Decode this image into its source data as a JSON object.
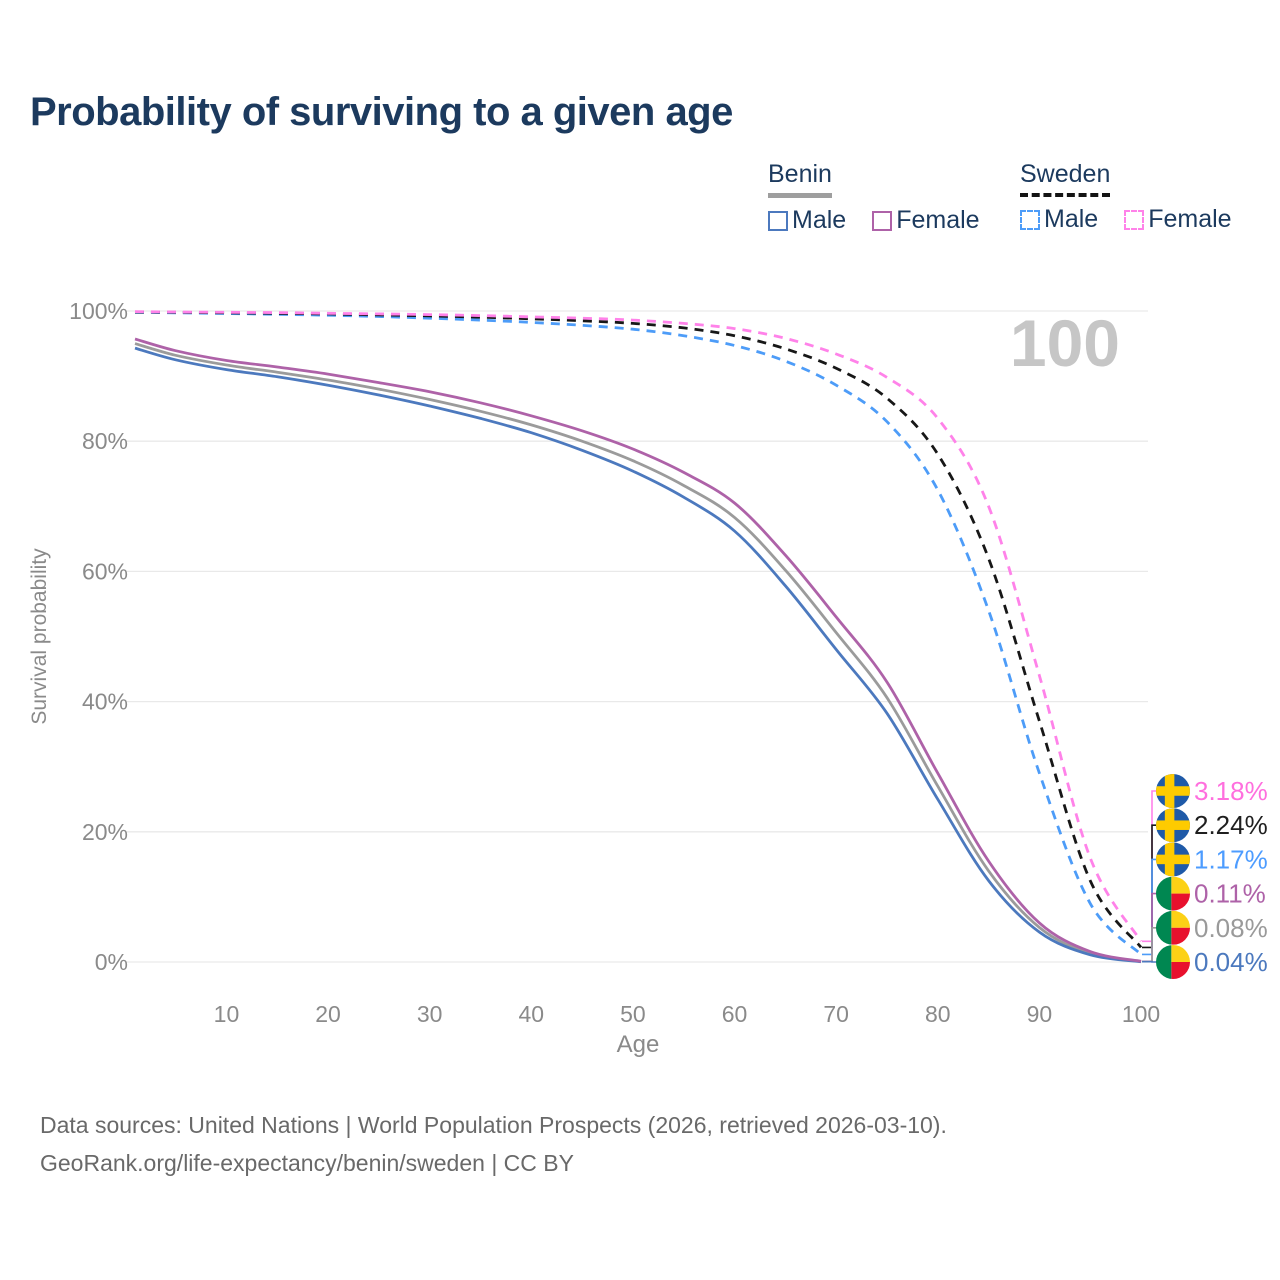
{
  "title": "Probability of surviving to a given age",
  "legend": {
    "groups": [
      {
        "label": "Benin",
        "underline": "solid",
        "underline_color": "#9e9e9e",
        "items": [
          {
            "label": "Male",
            "color": "#4c79be",
            "dash": "solid"
          },
          {
            "label": "Female",
            "color": "#ae62a8",
            "dash": "solid"
          }
        ]
      },
      {
        "label": "Sweden",
        "underline": "dashed",
        "underline_color": "#141414",
        "items": [
          {
            "label": "Male",
            "color": "#4d9cf8",
            "dash": "dashed"
          },
          {
            "label": "Female",
            "color": "#ff82e9",
            "dash": "dashed"
          }
        ]
      }
    ]
  },
  "chart_data": {
    "type": "line",
    "title": "Probability of surviving to a given age",
    "xlabel": "Age",
    "ylabel": "Survival probability",
    "x_range": [
      1,
      100
    ],
    "ylim": [
      0,
      100
    ],
    "grid": "horizontal",
    "x_ticks": [
      10,
      20,
      30,
      40,
      50,
      60,
      70,
      80,
      90,
      100
    ],
    "y_ticks": [
      0,
      20,
      40,
      60,
      80,
      100
    ],
    "y_tick_suffix": "%",
    "hover_age_indicator": "100",
    "hover_indicator_color": "#c6c6c6",
    "ages": [
      1,
      5,
      10,
      15,
      20,
      25,
      30,
      35,
      40,
      45,
      50,
      55,
      60,
      65,
      70,
      75,
      80,
      85,
      90,
      95,
      100
    ],
    "series": [
      {
        "name": "Benin Both sexes",
        "country": "Benin",
        "sex": "Both",
        "color": "#9b9b9b",
        "dash": "solid",
        "values": [
          95.0,
          93.2,
          91.7,
          90.6,
          89.4,
          88.0,
          86.4,
          84.6,
          82.5,
          80.0,
          77.0,
          73.2,
          68.3,
          60.2,
          50.6,
          40.6,
          27.0,
          14.0,
          5.3,
          1.3,
          0.08
        ]
      },
      {
        "name": "Benin Male",
        "country": "Benin",
        "sex": "Male",
        "color": "#4c79be",
        "dash": "solid",
        "values": [
          94.3,
          92.5,
          91.0,
          89.9,
          88.6,
          87.1,
          85.4,
          83.5,
          81.3,
          78.6,
          75.4,
          71.4,
          66.2,
          57.8,
          48.0,
          38.2,
          25.0,
          12.5,
          4.6,
          1.1,
          0.04
        ]
      },
      {
        "name": "Benin Female",
        "country": "Benin",
        "sex": "Female",
        "color": "#ae62a8",
        "dash": "solid",
        "values": [
          95.7,
          93.9,
          92.4,
          91.4,
          90.3,
          89.0,
          87.6,
          85.9,
          83.9,
          81.6,
          78.8,
          75.2,
          70.5,
          62.5,
          53.0,
          43.0,
          29.0,
          15.5,
          6.0,
          1.6,
          0.11
        ]
      },
      {
        "name": "Sweden Male",
        "country": "Sweden",
        "sex": "Male",
        "color": "#4d9cf8",
        "dash": "dashed",
        "values": [
          99.8,
          99.72,
          99.62,
          99.5,
          99.35,
          99.15,
          98.9,
          98.6,
          98.25,
          97.8,
          97.2,
          96.2,
          94.7,
          92.3,
          88.6,
          83.0,
          72.5,
          54.0,
          29.0,
          9.0,
          1.17
        ]
      },
      {
        "name": "Sweden Both sexes",
        "country": "Sweden",
        "sex": "Both",
        "color": "#171717",
        "dash": "dashed",
        "values": [
          99.85,
          99.8,
          99.72,
          99.65,
          99.55,
          99.4,
          99.25,
          99.05,
          98.8,
          98.5,
          98.1,
          97.4,
          96.2,
          94.2,
          91.2,
          86.6,
          78.0,
          62.0,
          37.0,
          12.5,
          2.24
        ]
      },
      {
        "name": "Sweden Female",
        "country": "Sweden",
        "sex": "Female",
        "color": "#ff82e9",
        "dash": "dashed",
        "values": [
          99.9,
          99.85,
          99.8,
          99.75,
          99.65,
          99.55,
          99.45,
          99.3,
          99.1,
          98.9,
          98.6,
          98.1,
          97.3,
          95.8,
          93.4,
          89.8,
          83.5,
          70.0,
          44.0,
          16.0,
          3.18
        ]
      }
    ],
    "end_labels": [
      {
        "text": "3.18%",
        "color": "#ff6fde",
        "flag": "sweden",
        "series_index": 5
      },
      {
        "text": "2.24%",
        "color": "#1f1f1f",
        "flag": "sweden",
        "series_index": 4
      },
      {
        "text": "1.17%",
        "color": "#4d9cff",
        "flag": "sweden",
        "series_index": 3
      },
      {
        "text": "0.11%",
        "color": "#ae62a8",
        "flag": "benin",
        "series_index": 2
      },
      {
        "text": "0.08%",
        "color": "#9a9a9a",
        "flag": "benin",
        "series_index": 0
      },
      {
        "text": "0.04%",
        "color": "#4c79be",
        "flag": "benin",
        "series_index": 1
      }
    ],
    "flag_colors": {
      "sweden": {
        "field": "#1f5aa8",
        "cross": "#fecb00"
      },
      "benin": {
        "hoist": "#008751",
        "top": "#fcd116",
        "bottom": "#e8112d"
      }
    }
  },
  "footer": {
    "line1": "Data sources: United Nations | World Population Prospects (2026, retrieved 2026-03-10).",
    "line2": "GeoRank.org/life-expectancy/benin/sweden | CC BY"
  }
}
